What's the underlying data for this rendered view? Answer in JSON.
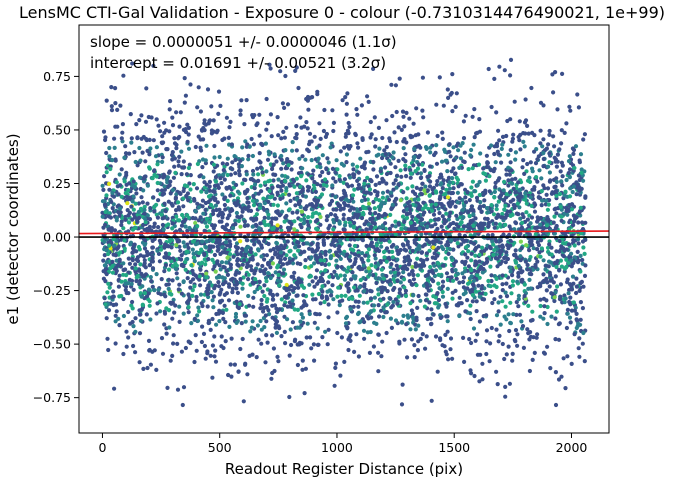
{
  "chart_data": {
    "type": "scatter",
    "title": "LensMC CTI-Gal Validation - Exposure 0 - colour (-0.7310314476490021, 1e+99)",
    "xlabel": "Readout Register Distance (pix)",
    "ylabel": "e1 (detector coordinates)",
    "xlim": [
      -100,
      2160
    ],
    "ylim": [
      -0.915,
      0.99
    ],
    "xticks": [
      0,
      500,
      1000,
      1500,
      2000
    ],
    "yticks": [
      -0.75,
      -0.5,
      -0.25,
      0.0,
      0.25,
      0.5,
      0.75
    ],
    "xtick_labels": [
      "0",
      "500",
      "1000",
      "1500",
      "2000"
    ],
    "ytick_labels": [
      "−0.75",
      "−0.50",
      "−0.25",
      "0.00",
      "0.25",
      "0.50",
      "0.75"
    ],
    "annotations": [
      "slope = 0.0000051 +/- 0.0000046 (1.1σ)",
      "intercept = 0.01691 +/- 0.00521 (3.2σ)"
    ],
    "fit_line": {
      "slope": 5.1e-06,
      "intercept": 0.01691,
      "color": "#e8191c"
    },
    "zero_line": {
      "y": 0.0,
      "color": "#000000"
    },
    "point_color_scale": [
      "#3b4f8a",
      "#2c7f8e",
      "#22a884",
      "#7ad151",
      "#dde318"
    ],
    "x_data_range": [
      0,
      2060
    ],
    "grid": false,
    "legend": "none"
  }
}
